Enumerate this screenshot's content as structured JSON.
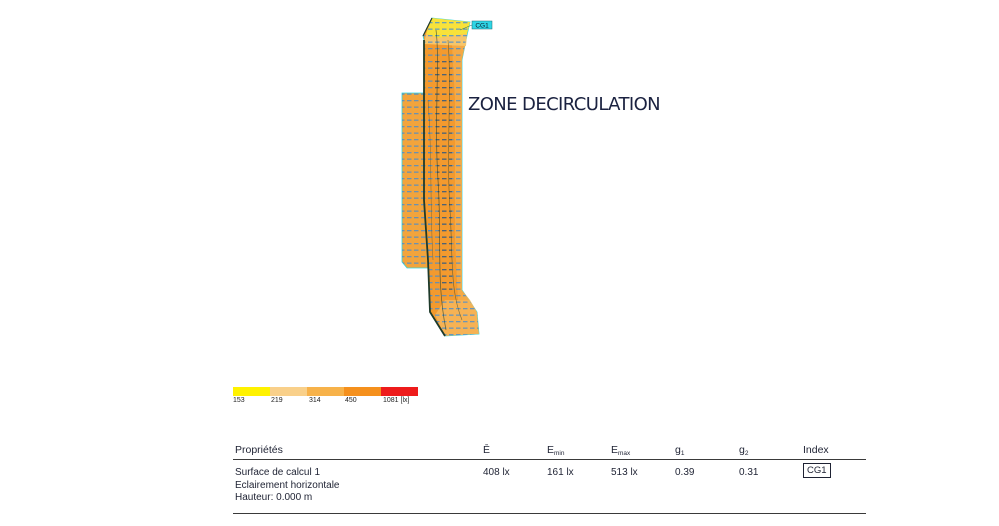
{
  "plan": {
    "zone_title": "ZONE DECIRCULATION",
    "index_tag": "CG1",
    "colors": {
      "fill_main": "#f39a2e",
      "fill_side": "#f2a43c",
      "fill_light": "#f5bd5c",
      "fill_yellow": "#f8e23a",
      "edge": "#1e3a2a",
      "cyan": "#28d7e6",
      "value_label": "#3a8ad8",
      "tag_bg": "#2ed6e6"
    }
  },
  "legend": {
    "colors": [
      "#fff200",
      "#f9d08a",
      "#f7b24a",
      "#f5901d",
      "#ee1b1b"
    ],
    "labels": [
      "153",
      "219",
      "314",
      "450",
      "1081 [lx]"
    ]
  },
  "properties": {
    "headers": {
      "name": "Propriétés",
      "e_avg": "Ē",
      "e_min": "E",
      "e_min_sub": "min",
      "e_max": "E",
      "e_max_sub": "max",
      "g1": "g",
      "g1_sub": "1",
      "g2": "g",
      "g2_sub": "2",
      "index": "Index"
    },
    "row": {
      "name_line1": "Surface de calcul 1",
      "name_line2": "Eclairement horizontale",
      "name_line3": "Hauteur: 0.000 m",
      "e_avg": "408 lx",
      "e_min": "161 lx",
      "e_max": "513 lx",
      "g1": "0.39",
      "g2": "0.31",
      "index": "CG1"
    }
  }
}
